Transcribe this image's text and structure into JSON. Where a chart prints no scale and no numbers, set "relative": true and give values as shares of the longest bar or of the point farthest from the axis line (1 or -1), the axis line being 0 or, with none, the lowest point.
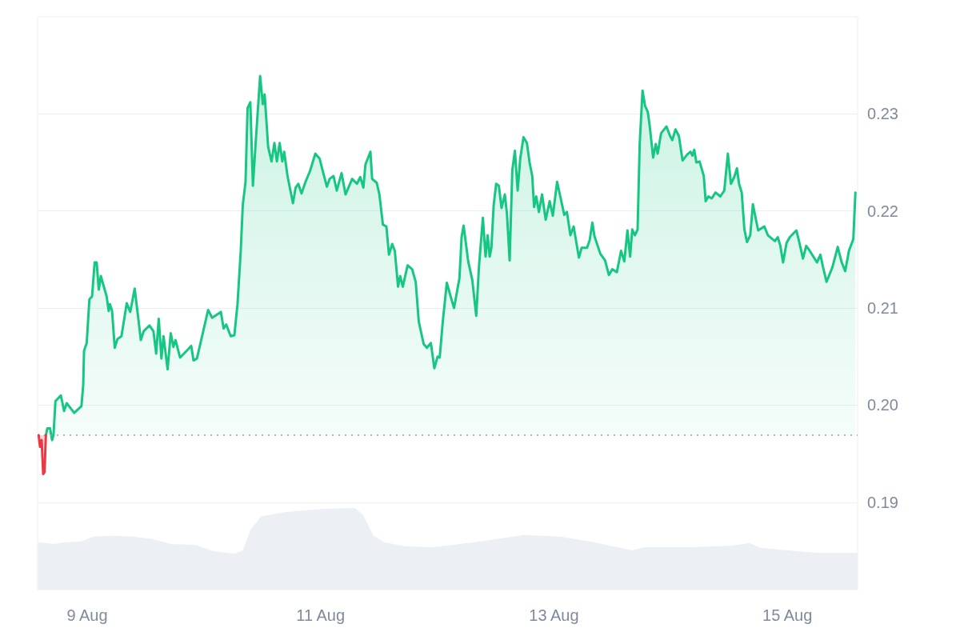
{
  "chart_data": [
    {
      "type": "area",
      "series": [
        {
          "color": "#ea3943",
          "x": [
            "--08-08T14:01",
            "--08-08T14:18",
            "--08-08T14:38",
            "--08-08T14:57",
            "--08-08T15:14",
            "--08-08T15:30"
          ],
          "values": [
            0.1969,
            0.1957,
            0.1964,
            0.1929,
            0.1931,
            0.1969
          ]
        },
        {
          "color": "#16c784",
          "x": [
            "--08-08T15:30",
            "--08-08T15:48",
            "--08-08T16:22",
            "--08-08T16:36",
            "--08-08T16:47",
            "--08-08T17:04",
            "--08-08T17:28",
            "--08-08T18:35",
            "--08-08T19:15",
            "--08-08T19:47",
            "--08-08T21:20",
            "--08-08T22:49",
            "--08-08T23:11",
            "--08-08T23:21",
            "--08-08T23:54",
            "--08-09T00:27",
            "--08-09T01:00",
            "--08-09T01:32",
            "--08-09T01:57",
            "--08-09T02:23",
            "--08-09T02:48",
            "--08-09T04:00",
            "--08-09T04:25",
            "--08-09T04:41",
            "--08-09T05:07",
            "--08-09T05:40",
            "--08-09T06:13",
            "--08-09T07:03",
            "--08-09T08:08",
            "--08-09T08:51",
            "--08-09T09:46",
            "--08-09T10:31",
            "--08-09T11:02",
            "--08-09T11:36",
            "--08-09T12:49",
            "--08-09T13:38",
            "--08-09T14:11",
            "--08-09T14:43",
            "--08-09T15:16",
            "--08-09T15:42",
            "--08-09T16:32",
            "--08-09T17:11",
            "--08-09T17:44",
            "--08-09T18:10",
            "--08-09T19:06",
            "--08-09T20:28",
            "--08-09T21:24",
            "--08-09T21:52",
            "--08-09T22:34",
            "--08-09T23:46",
            "--08-10T00:52",
            "--08-10T01:42",
            "--08-10T03:30",
            "--08-10T04:03",
            "--08-10T04:36",
            "--08-10T05:31",
            "--08-10T06:16",
            "--08-10T06:55",
            "--08-10T07:35",
            "--08-10T08:00",
            "--08-10T08:34",
            "--08-10T08:59",
            "--08-10T09:33",
            "--08-10T10:05",
            "--08-10T10:38",
            "--08-10T11:34",
            "--08-10T12:07",
            "--08-10T12:30",
            "--08-10T13:13",
            "--08-10T13:55",
            "--08-10T14:30",
            "--08-10T15:01",
            "--08-10T15:35",
            "--08-10T16:08",
            "--08-10T16:31",
            "--08-10T17:12",
            "--08-10T18:19",
            "--08-10T18:52",
            "--08-10T19:25",
            "--08-10T20:05",
            "--08-10T20:54",
            "--08-10T21:49",
            "--08-10T22:55",
            "--08-10T23:48",
            "--08-11T00:27",
            "--08-11T01:18",
            "--08-11T01:51",
            "--08-11T02:40",
            "--08-11T03:20",
            "--08-11T04:19",
            "--08-11T05:08",
            "--08-11T06:30",
            "--08-11T07:29",
            "--08-11T08:10",
            "--08-11T08:48",
            "--08-11T09:14",
            "--08-11T10:15",
            "--08-11T10:36",
            "--08-11T11:33",
            "--08-11T12:06",
            "--08-11T12:49",
            "--08-11T13:32",
            "--08-11T14:04",
            "--08-11T14:44",
            "--08-11T15:16",
            "--08-11T15:56",
            "--08-11T16:22",
            "--08-11T16:55",
            "--08-11T17:54",
            "--08-11T18:50",
            "--08-11T19:34",
            "--08-11T20:12",
            "--08-11T21:12",
            "--08-11T21:52",
            "--08-11T22:41",
            "--08-11T23:24",
            "--08-12T00:04",
            "--08-12T00:30",
            "--08-12T01:09",
            "--08-12T01:58",
            "--08-12T02:48",
            "--08-12T03:27",
            "--08-12T04:34",
            "--08-12T05:00",
            "--08-12T05:25",
            "--08-12T06:22",
            "--08-12T07:12",
            "--08-12T08:01",
            "--08-12T08:34",
            "--08-12T09:23",
            "--08-12T09:56",
            "--08-12T10:22",
            "--08-12T10:47",
            "--08-12T11:08",
            "--08-12T11:36",
            "--08-12T12:07",
            "--08-12T12:40",
            "--08-12T13:13",
            "--08-12T13:54",
            "--08-12T14:20",
            "--08-12T14:53",
            "--08-12T15:26",
            "--08-12T15:58",
            "--08-12T16:32",
            "--08-12T17:04",
            "--08-12T17:44",
            "--08-12T18:26",
            "--08-12T18:59",
            "--08-12T19:32",
            "--08-12T19:55",
            "--08-12T20:21",
            "--08-12T20:54",
            "--08-12T21:33",
            "--08-12T22:18",
            "--08-12T23:07",
            "--08-12T23:46",
            "--08-13T00:39",
            "--08-13T01:18",
            "--08-13T02:07",
            "--08-13T02:40",
            "--08-13T03:23",
            "--08-13T04:03",
            "--08-13T05:08",
            "--08-13T05:41",
            "--08-13T06:48",
            "--08-13T07:21",
            "--08-13T07:54",
            "--08-13T08:20",
            "--08-13T09:32",
            "--08-13T10:31",
            "--08-13T11:18",
            "--08-13T12:00",
            "--08-13T12:56",
            "--08-13T13:48",
            "--08-13T14:28",
            "--08-13T15:07",
            "--08-13T15:40",
            "--08-13T16:06",
            "--08-13T16:39",
            "--08-13T17:12",
            "--08-13T17:38",
            "--08-13T18:13",
            "--08-13T18:45",
            "--08-13T19:18",
            "--08-13T19:41",
            "--08-13T20:24",
            "--08-13T20:56",
            "--08-13T21:20",
            "--08-13T22:02",
            "--08-13T23:08",
            "--08-13T23:54",
            "--08-14T00:20",
            "--08-14T01:00",
            "--08-14T01:42",
            "--08-14T02:27",
            "--08-14T03:22",
            "--08-14T04:05",
            "--08-14T04:28",
            "--08-14T04:51",
            "--08-14T05:17",
            "--08-14T05:57",
            "--08-14T06:49",
            "--08-14T07:12",
            "--08-14T07:45",
            "--08-14T08:27",
            "--08-14T09:14",
            "--08-14T10:13",
            "--08-14T11:02",
            "--08-14T11:46",
            "--08-14T12:24",
            "--08-14T13:05",
            "--08-14T13:38",
            "--08-14T14:04",
            "--08-14T14:37",
            "--08-14T15:10",
            "--08-14T15:42",
            "--08-14T16:22",
            "--08-14T16:55",
            "--08-14T17:28",
            "--08-14T18:00",
            "--08-14T19:16",
            "--08-14T20:00",
            "--08-14T21:27",
            "--08-14T22:02",
            "--08-14T22:34",
            "--08-14T23:07",
            "--08-14T23:50",
            "--08-15T00:30",
            "--08-15T01:51",
            "--08-15T02:24",
            "--08-15T03:13",
            "--08-15T03:53",
            "--08-15T04:36",
            "--08-15T06:06",
            "--08-15T06:48",
            "--08-15T07:21",
            "--08-15T08:04",
            "--08-15T09:16",
            "--08-15T10:22",
            "--08-15T11:11",
            "--08-15T11:54",
            "--08-15T12:40",
            "--08-15T13:34",
            "--08-15T14:00"
          ],
          "values": [
            0.1969,
            0.1976,
            0.1976,
            0.1969,
            0.1964,
            0.1969,
            0.2004,
            0.201,
            0.1994,
            0.2002,
            0.1992,
            0.1999,
            0.2021,
            0.2056,
            0.2064,
            0.2109,
            0.2112,
            0.2147,
            0.2147,
            0.2119,
            0.2133,
            0.2112,
            0.2097,
            0.2104,
            0.2097,
            0.2059,
            0.2068,
            0.2071,
            0.2105,
            0.2096,
            0.212,
            0.2089,
            0.2067,
            0.2076,
            0.2082,
            0.2076,
            0.2053,
            0.2089,
            0.2048,
            0.2071,
            0.2037,
            0.2074,
            0.206,
            0.2067,
            0.2049,
            0.2056,
            0.2061,
            0.2046,
            0.2048,
            0.2074,
            0.2098,
            0.209,
            0.2096,
            0.2079,
            0.2083,
            0.2071,
            0.2072,
            0.2104,
            0.2159,
            0.2206,
            0.223,
            0.2306,
            0.2312,
            0.2226,
            0.2269,
            0.2339,
            0.231,
            0.232,
            0.2266,
            0.2251,
            0.227,
            0.2251,
            0.227,
            0.2251,
            0.2261,
            0.2236,
            0.2208,
            0.2224,
            0.2228,
            0.2218,
            0.223,
            0.2241,
            0.2259,
            0.2254,
            0.2241,
            0.2225,
            0.2233,
            0.2236,
            0.2221,
            0.2239,
            0.2217,
            0.2233,
            0.2228,
            0.2235,
            0.2224,
            0.2248,
            0.2261,
            0.2233,
            0.2229,
            0.2217,
            0.2186,
            0.2184,
            0.2155,
            0.2166,
            0.2159,
            0.2122,
            0.2133,
            0.2122,
            0.2144,
            0.214,
            0.2127,
            0.2086,
            0.2063,
            0.2059,
            0.2064,
            0.2038,
            0.205,
            0.2049,
            0.2087,
            0.2126,
            0.2111,
            0.21,
            0.2131,
            0.2173,
            0.2185,
            0.2148,
            0.2129,
            0.2092,
            0.2142,
            0.2193,
            0.2153,
            0.2175,
            0.2153,
            0.2162,
            0.2206,
            0.2228,
            0.2226,
            0.2203,
            0.2217,
            0.2197,
            0.2149,
            0.2242,
            0.2262,
            0.2221,
            0.2254,
            0.2276,
            0.227,
            0.225,
            0.2236,
            0.2204,
            0.2215,
            0.2199,
            0.2217,
            0.2191,
            0.221,
            0.2195,
            0.223,
            0.2215,
            0.2196,
            0.2199,
            0.2175,
            0.2184,
            0.2152,
            0.2162,
            0.2162,
            0.217,
            0.2188,
            0.2174,
            0.2156,
            0.2149,
            0.2134,
            0.214,
            0.2137,
            0.2159,
            0.2148,
            0.218,
            0.2153,
            0.2181,
            0.2175,
            0.2181,
            0.2269,
            0.2324,
            0.2308,
            0.2302,
            0.2288,
            0.2255,
            0.2269,
            0.2259,
            0.228,
            0.2287,
            0.2277,
            0.2273,
            0.2284,
            0.2277,
            0.2252,
            0.2258,
            0.2261,
            0.2257,
            0.2263,
            0.225,
            0.2251,
            0.2236,
            0.221,
            0.2215,
            0.2213,
            0.2219,
            0.2215,
            0.2221,
            0.2259,
            0.2228,
            0.2235,
            0.2244,
            0.2228,
            0.2219,
            0.2181,
            0.2168,
            0.2175,
            0.2207,
            0.2193,
            0.218,
            0.2184,
            0.2175,
            0.2169,
            0.2173,
            0.2164,
            0.2147,
            0.2167,
            0.2173,
            0.218,
            0.2169,
            0.2151,
            0.2164,
            0.2159,
            0.2147,
            0.2155,
            0.2142,
            0.2127,
            0.2142,
            0.2163,
            0.2147,
            0.2138,
            0.2159,
            0.2171,
            0.2219
          ]
        }
      ],
      "xlim": [
        "--08-08T13:48",
        "--08-15T14:27"
      ],
      "ylim": [
        0.181,
        0.24
      ],
      "yticks": [
        0.19,
        {
          "value": 0.2,
          "label": "0.20"
        },
        0.21,
        0.22,
        0.23
      ],
      "tick_labels": "y",
      "grid": "y",
      "ref_lines": [
        {
          "axis": "y",
          "value": 0.1969,
          "color": "#9aa0aa",
          "line_style": "dotted"
        }
      ]
    },
    {
      "type": "area",
      "relative": true,
      "x": [
        "--08-08T13:52",
        "--08-08T17:04",
        "--08-08T19:47",
        "--08-08T22:49",
        "--08-09T01:16",
        "--08-09T05:07",
        "--08-09T09:30",
        "--08-09T13:21",
        "--08-09T17:11",
        "--08-09T22:08",
        "--08-10T01:58",
        "--08-10T06:22",
        "--08-10T08:00",
        "--08-10T09:39",
        "--08-10T11:51",
        "--08-10T16:48",
        "--08-11T01:02",
        "--08-11T07:03",
        "--08-11T08:41",
        "--08-11T10:54",
        "--08-11T13:05",
        "--08-11T17:28",
        "--08-11T22:58",
        "--08-12T07:47",
        "--08-12T17:47",
        "--08-13T01:25",
        "--08-13T09:03",
        "--08-13T16:06",
        "--08-13T18:29",
        "--08-14T03:52",
        "--08-14T12:42",
        "--08-14T16:13",
        "--08-14T18:35",
        "--08-15T06:19",
        "--08-15T14:25"
      ],
      "series": [
        {
          "color": "#eceff3",
          "values": [
            0.58,
            0.56,
            0.58,
            0.59,
            0.65,
            0.66,
            0.65,
            0.62,
            0.56,
            0.55,
            0.47,
            0.44,
            0.48,
            0.74,
            0.9,
            0.95,
            0.99,
            1.0,
            0.92,
            0.66,
            0.58,
            0.53,
            0.52,
            0.58,
            0.67,
            0.65,
            0.57,
            0.48,
            0.52,
            0.52,
            0.54,
            0.57,
            0.51,
            0.45,
            0.45
          ]
        }
      ],
      "xlim": [
        "--08-08T13:48",
        "--08-15T14:27"
      ],
      "xticks": [
        {
          "value": "--08-09",
          "label": "9 Aug"
        },
        {
          "value": "--08-11",
          "label": "11 Aug"
        },
        {
          "value": "--08-13",
          "label": "13 Aug"
        },
        {
          "value": "--08-15",
          "label": "15 Aug"
        }
      ]
    }
  ]
}
